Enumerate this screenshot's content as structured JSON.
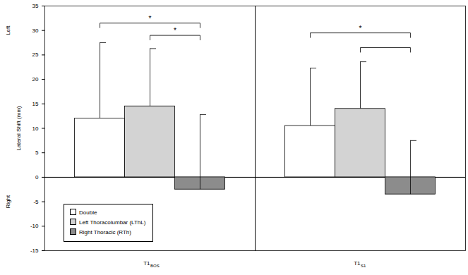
{
  "chart_data": {
    "type": "bar",
    "ylabel": "Lateral Shift (mm)",
    "side_labels": [
      {
        "text": "Left",
        "y": 30
      },
      {
        "text": "Right",
        "y": -5
      }
    ],
    "categories": [
      "Double",
      "Left Thoracolumbar (LThL)",
      "Right Thoracic (RTh)"
    ],
    "colors": [
      "#ffffff",
      "#d3d3d3",
      "#8c8c8c"
    ],
    "legend": "lower left",
    "ylim": [
      -15,
      35
    ],
    "yticks": [
      -15,
      -10,
      -5,
      0,
      5,
      10,
      15,
      20,
      25,
      30,
      35
    ],
    "panels": [
      {
        "label": "T1",
        "subscript": "BOS",
        "values": [
          12,
          14.5,
          -2.5
        ],
        "errors": [
          15.5,
          11.8,
          15.3
        ],
        "brackets": [
          {
            "from": 0,
            "to": 2,
            "y": 31.5,
            "label": "*"
          },
          {
            "from": 1,
            "to": 2,
            "y": 29,
            "label": "*"
          }
        ]
      },
      {
        "label": "T1",
        "subscript": "S1",
        "values": [
          10.5,
          14,
          -3.5
        ],
        "errors": [
          11.8,
          9.6,
          11
        ],
        "brackets": [
          {
            "from": 0,
            "to": 2,
            "y": 29.5,
            "label": "*"
          },
          {
            "from": 1,
            "to": 2,
            "y": 26.5
          }
        ]
      }
    ]
  }
}
